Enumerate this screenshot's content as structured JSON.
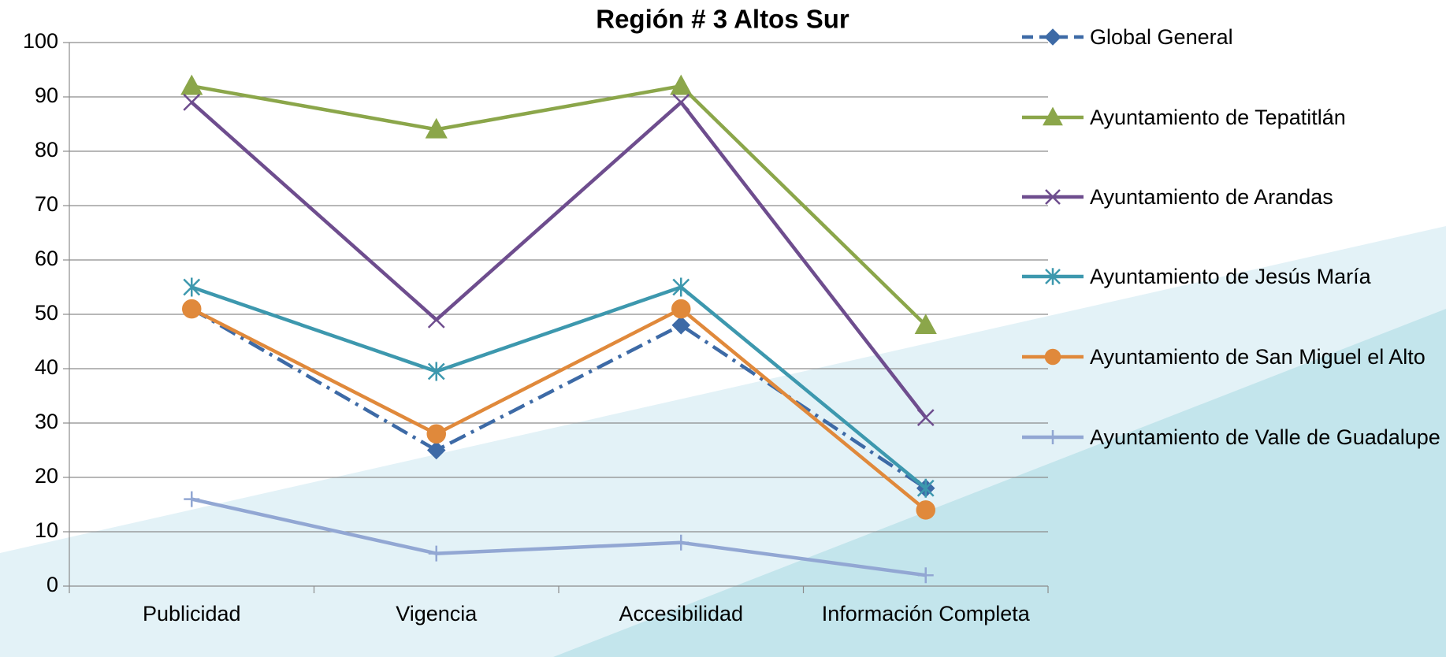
{
  "chart_data": {
    "type": "line",
    "title": "Región # 3 Altos Sur",
    "categories": [
      "Publicidad",
      "Vigencia",
      "Accesibilidad",
      "Información Completa"
    ],
    "series": [
      {
        "name": "Global General",
        "color": "#3d6aa6",
        "dash": "dashdot",
        "marker": "diamond",
        "values": [
          51,
          25,
          48,
          18
        ]
      },
      {
        "name": "Ayuntamiento de Tepatitlán",
        "color": "#8ba64a",
        "marker": "triangle",
        "values": [
          92,
          84,
          92,
          48
        ]
      },
      {
        "name": "Ayuntamiento de Arandas",
        "color": "#6e4d8e",
        "marker": "x",
        "values": [
          89,
          49,
          89,
          31
        ]
      },
      {
        "name": "Ayuntamiento de Jesús María",
        "color": "#3d98ae",
        "marker": "asterisk",
        "values": [
          55,
          39.5,
          55,
          18
        ]
      },
      {
        "name": "Ayuntamiento de San Miguel el Alto",
        "color": "#e0893b",
        "marker": "circle",
        "values": [
          51,
          28,
          51,
          14
        ]
      },
      {
        "name": "Ayuntamiento de Valle de Guadalupe",
        "color": "#92a7d3",
        "marker": "plus",
        "values": [
          16,
          6,
          8,
          2
        ]
      }
    ],
    "ylim": [
      0,
      100
    ],
    "yticks": [
      0,
      10,
      20,
      30,
      40,
      50,
      60,
      70,
      80,
      90,
      100
    ],
    "grid": true,
    "legend": "right"
  }
}
